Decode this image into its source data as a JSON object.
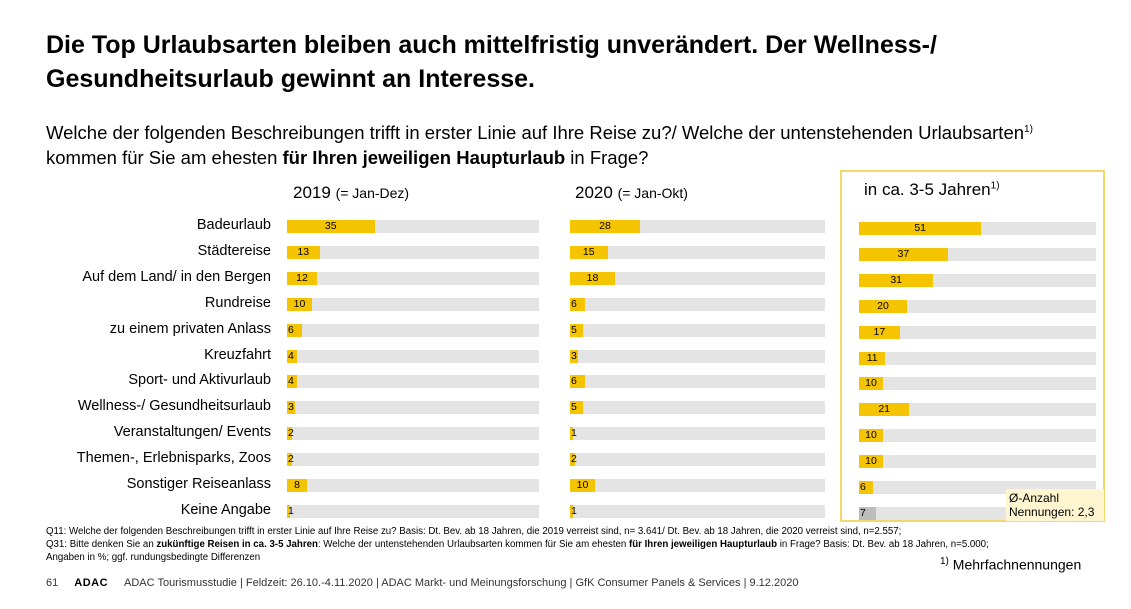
{
  "title": "Die Top Urlaubsarten bleiben auch mittelfristig unverändert. Der Wellness-/ Gesundheitsurlaub gewinnt an Interesse.",
  "question": {
    "part1": "Welche der folgenden Beschreibungen trifft in erster Linie auf Ihre Reise zu?/ Welche der untenstehenden Urlaubsarten",
    "sup": "1)",
    "part2": " kommen für Sie am ehesten ",
    "bold": "für Ihren jeweiligen Haupturlaub",
    "part3": " in Frage?"
  },
  "panels": {
    "p2019": {
      "year": "2019",
      "sub": "(= Jan-Dez)"
    },
    "p2020": {
      "year": "2020",
      "sub": "(= Jan-Okt)"
    },
    "pFuture": {
      "label": "in ca. 3-5 Jahren",
      "sup": "1)"
    }
  },
  "average": {
    "line1": "Ø-Anzahl",
    "line2": "Nennungen: 2,3"
  },
  "notes": {
    "q11": "Q11: Welche der folgenden Beschreibungen trifft in erster Linie auf Ihre Reise zu? Basis: Dt. Bev. ab 18 Jahren, die 2019 verreist sind, n= 3.641/ Dt. Bev. ab 18 Jahren, die 2020 verreist sind, n=2.557;",
    "q31_a": "Q31: Bitte denken Sie an ",
    "q31_b": "zukünftige Reisen in ca. 3-5 Jahren",
    "q31_c": ": Welche der untenstehenden Urlaubsarten kommen für Sie am ehesten ",
    "q31_d": "für Ihren jeweiligen Haupturlaub",
    "q31_e": " in Frage? Basis: Dt. Bev. ab 18 Jahren, n=5.000;",
    "q31_f": "Angaben in %; ggf. rundungsbedingte Differenzen"
  },
  "mehrfach": {
    "sup": "1)",
    "text": "Mehrfachnennungen"
  },
  "footer": {
    "page": "61",
    "brand": "ADAC",
    "text": "ADAC Tourismusstudie | Feldzeit: 26.10.-4.11.2020 | ADAC Markt- und Meinungsforschung | GfK Consumer Panels & Services | 9.12.2020"
  },
  "colors": {
    "bar": "#f5c400",
    "track": "#e4e4e4",
    "highlight_border": "#f5d86a",
    "keine_angabe_future": "#bcbcbc"
  },
  "chart_data": {
    "type": "bar",
    "orientation": "horizontal",
    "unit": "%",
    "xlim": [
      0,
      100
    ],
    "categories": [
      "Badeurlaub",
      "Städtereise",
      "Auf dem Land/ in den Bergen",
      "Rundreise",
      "zu einem privaten Anlass",
      "Kreuzfahrt",
      "Sport- und Aktivurlaub",
      "Wellness-/ Gesundheitsurlaub",
      "Veranstaltungen/ Events",
      "Themen-, Erlebnisparks, Zoos",
      "Sonstiger Reiseanlass",
      "Keine Angabe"
    ],
    "series": [
      {
        "name": "2019 (= Jan-Dez)",
        "values": [
          35,
          13,
          12,
          10,
          6,
          4,
          4,
          3,
          2,
          2,
          8,
          1
        ]
      },
      {
        "name": "2020 (= Jan-Okt)",
        "values": [
          28,
          15,
          18,
          6,
          5,
          3,
          6,
          5,
          1,
          2,
          10,
          1
        ]
      },
      {
        "name": "in ca. 3-5 Jahren",
        "values": [
          51,
          37,
          31,
          20,
          17,
          11,
          10,
          21,
          10,
          10,
          6,
          7
        ]
      }
    ]
  }
}
